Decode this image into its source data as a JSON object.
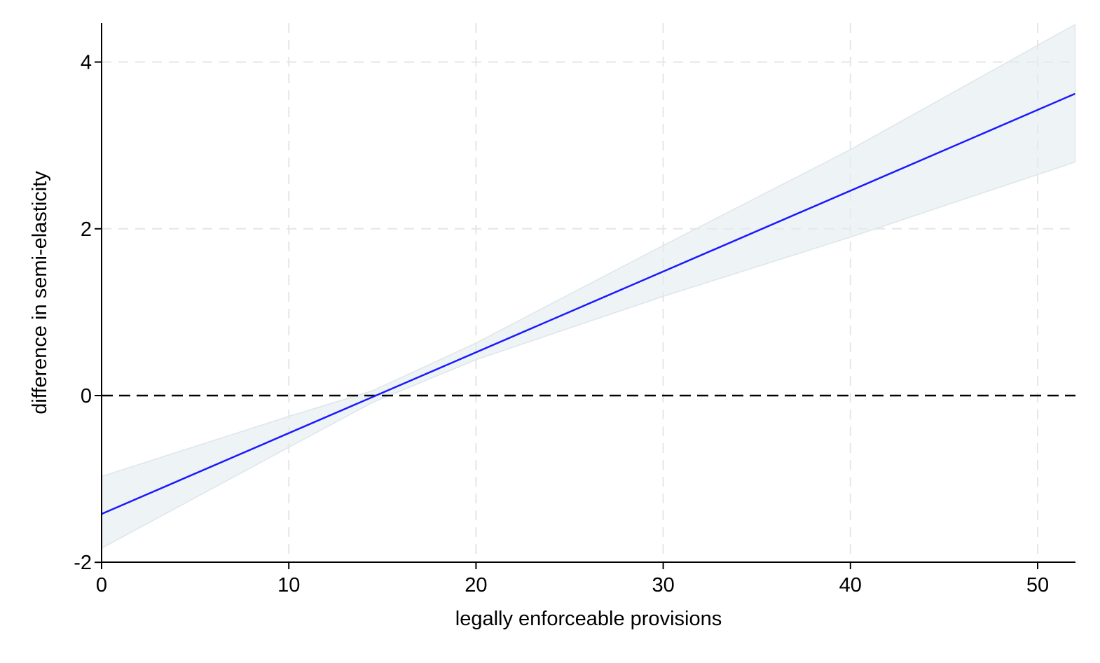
{
  "chart_data": {
    "type": "line",
    "title": "",
    "xlabel": "legally enforceable provisions",
    "ylabel": "difference in semi-elasticity",
    "xlim": [
      0,
      52
    ],
    "ylim": [
      -2,
      4.45
    ],
    "x_ticks": [
      0,
      10,
      20,
      30,
      40,
      50
    ],
    "y_ticks": [
      -2,
      0,
      2,
      4
    ],
    "x_tick_labels": [
      "0",
      "10",
      "20",
      "30",
      "40",
      "50"
    ],
    "y_tick_labels": [
      "-2",
      "0",
      "2",
      "4"
    ],
    "grid": true,
    "reference_line": {
      "y": 0,
      "style": "dashed",
      "color": "#000000"
    },
    "series": [
      {
        "type": "line",
        "color": "#1a1aff",
        "x": [
          0,
          52
        ],
        "y": [
          -1.42,
          3.62
        ]
      },
      {
        "type": "confidence-band",
        "color": "#e3ebef",
        "x": [
          0,
          10,
          14.5,
          20,
          30,
          40,
          52
        ],
        "lower": [
          -1.83,
          -0.62,
          -0.08,
          0.43,
          1.19,
          1.9,
          2.8
        ],
        "upper": [
          -0.97,
          -0.25,
          0.06,
          0.63,
          1.8,
          2.95,
          4.45
        ]
      }
    ]
  }
}
